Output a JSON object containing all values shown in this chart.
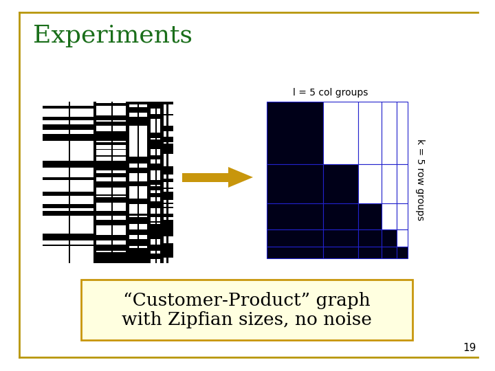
{
  "title": "Experiments",
  "title_color": "#1a6e1a",
  "title_fontsize": 26,
  "bg_color": "#ffffff",
  "border_color": "#b8960c",
  "slide_number": "19",
  "arrow_color": "#c8960c",
  "label_l": "l = 5 col groups",
  "label_k": "k = 5 row groups",
  "matrix_dark": "#000018",
  "matrix_grid_color": "#2222cc",
  "matrix_white": "#ffffff",
  "text_box_text_line1": "“Customer-Product” graph",
  "text_box_text_line2": "with Zipfian sizes, no noise",
  "text_box_bg": "#ffffe0",
  "text_box_border": "#c8960c",
  "text_fontsize": 19,
  "zipfian_sizes": [
    0.4,
    0.25,
    0.17,
    0.11,
    0.07
  ]
}
